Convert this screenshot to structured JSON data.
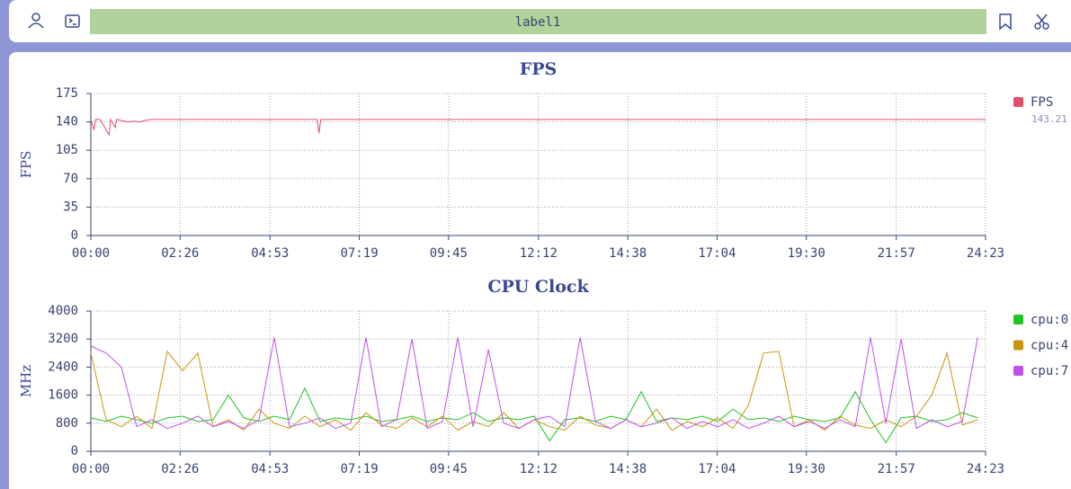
{
  "toolbar": {
    "label": "label1"
  },
  "chart_data": [
    {
      "type": "line",
      "title": "FPS",
      "y_label": "FPS",
      "x": [
        0,
        5,
        8,
        15,
        30,
        32,
        40,
        42,
        60,
        70,
        80,
        90,
        100,
        370,
        373,
        376,
        380,
        600,
        900,
        1200,
        1463
      ],
      "series": [
        {
          "name": "FPS",
          "color": "#e0506a",
          "last": 143.21,
          "values": [
            143,
            130,
            143,
            143,
            124,
            143,
            133,
            143,
            140,
            141,
            140,
            142,
            143,
            143,
            126,
            143,
            143,
            143,
            143,
            143,
            143
          ]
        }
      ],
      "xlim": [
        0,
        1463
      ],
      "xticks": [
        {
          "value": 0,
          "label": "00:00"
        },
        {
          "value": 146,
          "label": "02:26"
        },
        {
          "value": 293,
          "label": "04:53"
        },
        {
          "value": 439,
          "label": "07:19"
        },
        {
          "value": 585,
          "label": "09:45"
        },
        {
          "value": 732,
          "label": "12:12"
        },
        {
          "value": 878,
          "label": "14:38"
        },
        {
          "value": 1024,
          "label": "17:04"
        },
        {
          "value": 1170,
          "label": "19:30"
        },
        {
          "value": 1317,
          "label": "21:57"
        },
        {
          "value": 1463,
          "label": "24:23"
        }
      ],
      "ylim": [
        0,
        175
      ],
      "yticks": [
        0,
        35,
        70,
        105,
        140,
        175
      ],
      "grid": true
    },
    {
      "type": "line",
      "title": "CPU Clock",
      "y_label": "MHz",
      "x": [
        0,
        25,
        50,
        75,
        100,
        125,
        150,
        175,
        200,
        225,
        250,
        275,
        300,
        325,
        350,
        375,
        400,
        425,
        450,
        475,
        500,
        525,
        550,
        575,
        600,
        625,
        650,
        675,
        700,
        725,
        750,
        775,
        800,
        825,
        850,
        875,
        900,
        925,
        950,
        975,
        1000,
        1025,
        1050,
        1075,
        1100,
        1125,
        1150,
        1175,
        1200,
        1225,
        1250,
        1275,
        1300,
        1325,
        1350,
        1375,
        1400,
        1425,
        1450
      ],
      "series": [
        {
          "name": "cpu:0",
          "color": "#22c422",
          "values": [
            950,
            850,
            1000,
            900,
            800,
            950,
            1000,
            850,
            900,
            1600,
            950,
            850,
            1000,
            900,
            1800,
            850,
            950,
            900,
            1000,
            850,
            900,
            1000,
            850,
            950,
            900,
            1100,
            850,
            950,
            900,
            1000,
            300,
            900,
            950,
            850,
            1000,
            900,
            1700,
            850,
            950,
            900,
            1000,
            850,
            1200,
            900,
            950,
            850,
            1000,
            900,
            850,
            950,
            1700,
            900,
            250,
            950,
            1000,
            850,
            900,
            1100,
            950
          ]
        },
        {
          "name": "cpu:4",
          "color": "#c8960a",
          "values": [
            2800,
            900,
            700,
            1000,
            650,
            2850,
            2300,
            2800,
            700,
            900,
            600,
            1200,
            800,
            650,
            1000,
            700,
            900,
            600,
            1100,
            750,
            650,
            950,
            700,
            1000,
            600,
            850,
            700,
            1100,
            650,
            900,
            700,
            600,
            1000,
            750,
            650,
            900,
            700,
            1200,
            600,
            850,
            700,
            950,
            650,
            1300,
            2800,
            2850,
            700,
            900,
            600,
            1000,
            750,
            650,
            900,
            700,
            1000,
            1600,
            2800,
            750,
            900
          ]
        },
        {
          "name": "cpu:7",
          "color": "#c050e8",
          "values": [
            3000,
            2800,
            2400,
            700,
            900,
            650,
            800,
            1000,
            700,
            850,
            650,
            900,
            3250,
            700,
            800,
            950,
            650,
            800,
            3250,
            700,
            900,
            3200,
            650,
            850,
            3250,
            700,
            2900,
            800,
            650,
            900,
            1000,
            700,
            3250,
            850,
            650,
            900,
            700,
            800,
            950,
            650,
            850,
            700,
            900,
            650,
            800,
            1000,
            700,
            850,
            650,
            900,
            700,
            3250,
            800,
            3200,
            650,
            900,
            700,
            850,
            3250
          ]
        }
      ],
      "xlim": [
        0,
        1463
      ],
      "xticks": [
        {
          "value": 0,
          "label": "00:00"
        },
        {
          "value": 146,
          "label": "02:26"
        },
        {
          "value": 293,
          "label": "04:53"
        },
        {
          "value": 439,
          "label": "07:19"
        },
        {
          "value": 585,
          "label": "09:45"
        },
        {
          "value": 732,
          "label": "12:12"
        },
        {
          "value": 878,
          "label": "14:38"
        },
        {
          "value": 1024,
          "label": "17:04"
        },
        {
          "value": 1170,
          "label": "19:30"
        },
        {
          "value": 1317,
          "label": "21:57"
        },
        {
          "value": 1463,
          "label": "24:23"
        }
      ],
      "ylim": [
        0,
        4000
      ],
      "yticks": [
        0,
        800,
        1600,
        2400,
        3200,
        4000
      ],
      "grid": true
    }
  ]
}
